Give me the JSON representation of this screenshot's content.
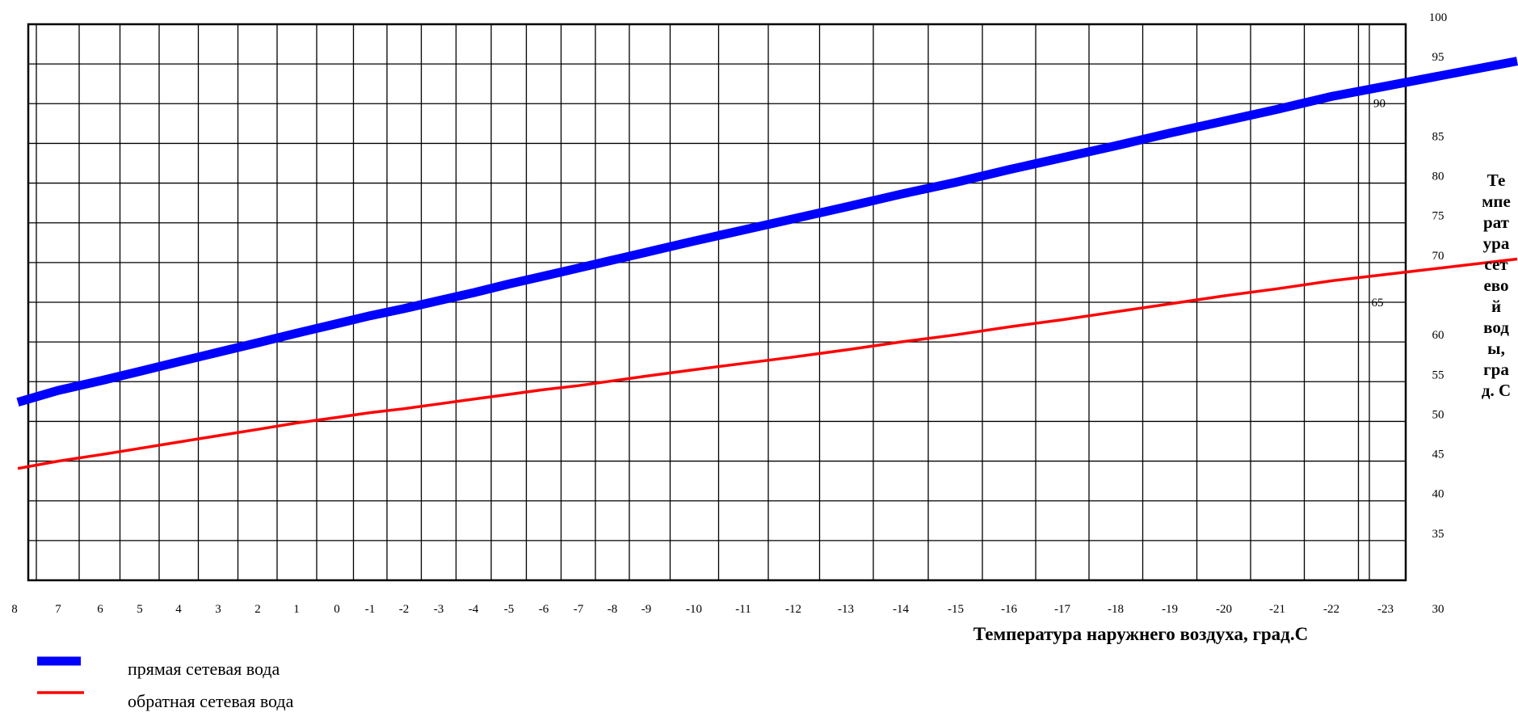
{
  "chart_data": {
    "type": "line",
    "title": "",
    "xlabel": "Температура наружнего воздуха, град.С",
    "ylabel_parts": [
      "Те",
      "мпе",
      "рат",
      "ура",
      "сет",
      "ево",
      "й",
      "вод",
      "ы,",
      "гра",
      "д. С"
    ],
    "x_ticks": [
      8,
      7,
      6,
      5,
      4,
      3,
      2,
      1,
      0,
      -1,
      -2,
      -3,
      -4,
      -5,
      -6,
      -7,
      -8,
      -9,
      -10,
      -11,
      -12,
      -13,
      -14,
      -15,
      -16,
      -17,
      -18,
      -19,
      -20,
      -21,
      -22,
      -23
    ],
    "y_ticks": [
      30,
      35,
      40,
      45,
      50,
      55,
      60,
      70,
      75,
      80,
      85,
      95,
      100
    ],
    "ylim": [
      30,
      100
    ],
    "grid": true,
    "series": [
      {
        "name": "прямая сетевая вода",
        "color": "#0000ff",
        "x": [
          8,
          7,
          6,
          5,
          4,
          3,
          2,
          1,
          0,
          -1,
          -2,
          -3,
          -4,
          -5,
          -6,
          -7,
          -8,
          -9,
          -10,
          -11,
          -12,
          -13,
          -14,
          -15,
          -16,
          -17,
          -18,
          -19,
          -20,
          -21,
          -22,
          -23
        ],
        "values": [
          52.3,
          53.9,
          55.1,
          56.3,
          57.5,
          58.7,
          59.9,
          61.1,
          62.3,
          63.3,
          64.2,
          65.2,
          66.2,
          67.3,
          68.3,
          69.3,
          70.3,
          71.3,
          72.7,
          74.1,
          75.5,
          77,
          78.6,
          80.1,
          81.7,
          83.2,
          84.7,
          86.3,
          87.8,
          89.3,
          90.9,
          92.2
        ]
      },
      {
        "name": "обратная сетевая вода",
        "color": "#ff0000",
        "x": [
          8,
          7,
          6,
          5,
          4,
          3,
          2,
          1,
          0,
          -1,
          -2,
          -3,
          -4,
          -5,
          -6,
          -7,
          -8,
          -9,
          -10,
          -11,
          -12,
          -13,
          -14,
          -15,
          -16,
          -17,
          -18,
          -19,
          -20,
          -21,
          -22,
          -23
        ],
        "values": [
          44,
          45,
          45.8,
          46.6,
          47.4,
          48.2,
          49,
          49.8,
          50.5,
          51.1,
          51.6,
          52.2,
          52.8,
          53.4,
          54,
          54.5,
          55.1,
          55.7,
          56.5,
          57.3,
          58.1,
          59,
          60,
          60.9,
          61.9,
          62.8,
          63.8,
          64.8,
          65.8,
          66.7,
          67.7,
          68.5
        ]
      }
    ],
    "annotations": [
      "90",
      "65"
    ],
    "legend_position": "bottom-left"
  }
}
